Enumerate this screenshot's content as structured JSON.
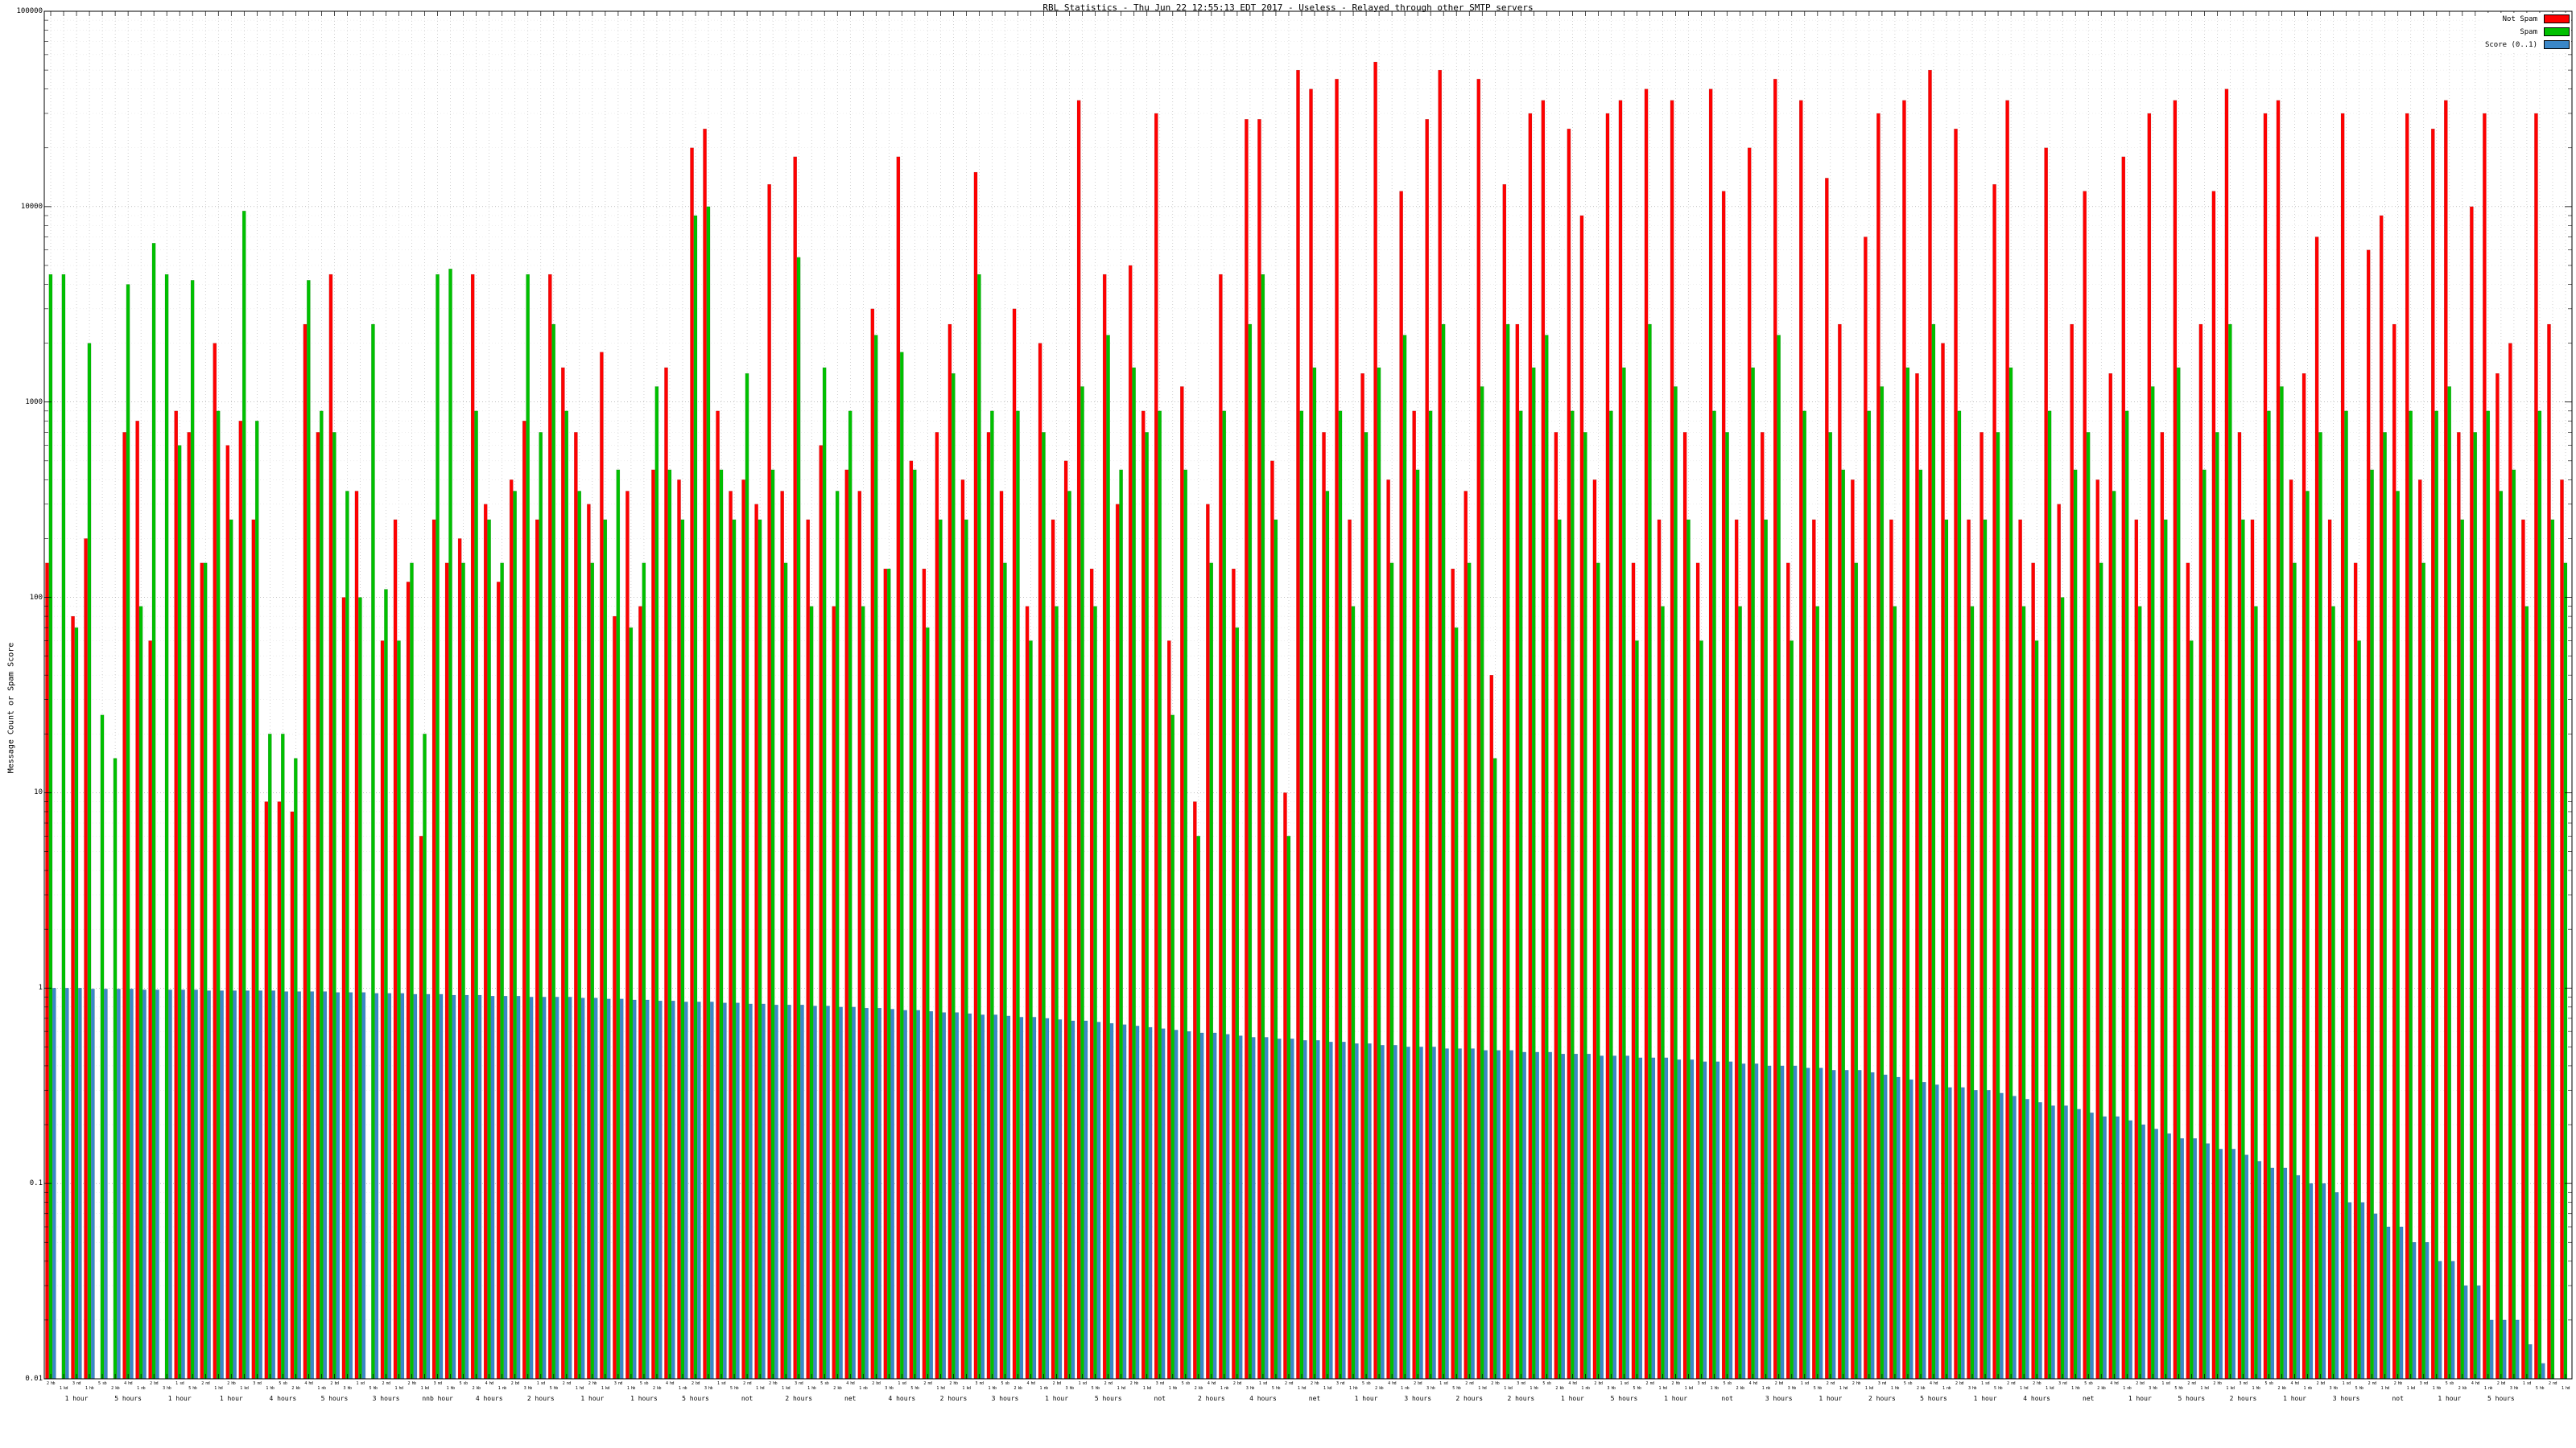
{
  "title": "RBL Statistics - Thu Jun 22 12:55:13 EDT 2017 - Useless - Relayed through other SMTP servers",
  "y_axis": {
    "label": "Message Count or Spam Score",
    "ticks": [
      "100000",
      "10000",
      "1000",
      "100",
      "10",
      "1",
      "0.1",
      "0.01"
    ]
  },
  "legend": {
    "items": [
      {
        "label": "Not Spam",
        "color": "#ff0000"
      },
      {
        "label": "Spam",
        "color": "#00c000"
      },
      {
        "label": "Score (0..1)",
        "color": "#3a87c8"
      }
    ]
  },
  "x_axis": {
    "dense_labels": [
      "2 hb",
      "1 kd",
      "3 nd",
      "1 hb",
      "5 sb",
      "2 kb",
      "4 hd",
      "1 nb",
      "2 bd",
      "3 hb",
      "1 sd",
      "5 hb",
      "2 nd",
      "1 hd",
      "2 hb",
      "1 kd",
      "3 nd",
      "1 hb",
      "5 sb",
      "2 kb",
      "4 hd",
      "1 nb",
      "2 bd",
      "3 hb",
      "1 sd",
      "5 hb",
      "2 nd",
      "1 hd",
      "2 hb",
      "1 kd",
      "3 nd",
      "1 hb",
      "5 sb",
      "2 kb",
      "4 hd",
      "1 nb",
      "2 bd",
      "3 hb",
      "1 sd",
      "5 hb",
      "2 nd",
      "1 hd",
      "2 hb",
      "1 kd",
      "3 nd",
      "1 hb",
      "5 sb",
      "2 kb",
      "4 hd",
      "1 nb",
      "2 bd",
      "3 hb",
      "1 sd",
      "5 hb",
      "2 nd",
      "1 hd",
      "2 hb",
      "1 kd",
      "3 nd",
      "1 hb",
      "5 sb",
      "2 kb",
      "4 hd",
      "1 nb",
      "2 bd",
      "3 hb",
      "1 sd",
      "5 hb",
      "2 nd",
      "1 hd",
      "2 hb",
      "1 kd",
      "3 nd",
      "1 hb",
      "5 sb",
      "2 kb",
      "4 hd",
      "1 nb",
      "2 bd",
      "3 hb",
      "1 sd",
      "5 hb",
      "2 nd",
      "1 hd",
      "2 hb",
      "1 kd",
      "3 nd",
      "1 hb",
      "5 sb",
      "2 kb",
      "4 hd",
      "1 nb",
      "2 bd",
      "3 hb",
      "1 sd",
      "5 hb",
      "2 nd",
      "1 hd",
      "2 hb",
      "1 kd",
      "3 nd",
      "1 hb",
      "5 sb",
      "2 kb",
      "4 hd",
      "1 nb",
      "2 bd",
      "3 hb",
      "1 sd",
      "5 hb",
      "2 nd",
      "1 hd",
      "2 hb",
      "1 kd",
      "3 nd",
      "1 hb",
      "5 sb",
      "2 kb",
      "4 hd",
      "1 nb",
      "2 bd",
      "3 hb",
      "1 sd",
      "5 hb",
      "2 nd",
      "1 hd",
      "2 hb",
      "1 kd",
      "3 nd",
      "1 hb",
      "5 sb",
      "2 kb",
      "4 hd",
      "1 nb",
      "2 bd",
      "3 hb",
      "1 sd",
      "5 hb",
      "2 nd",
      "1 hd",
      "2 hb",
      "1 kd",
      "3 nd",
      "1 hb",
      "5 sb",
      "2 kb",
      "4 hd",
      "1 nb",
      "2 bd",
      "3 hb",
      "1 sd",
      "5 hb",
      "2 nd",
      "1 hd",
      "2 hb",
      "1 kd",
      "3 nd",
      "1 hb",
      "5 sb",
      "2 kb",
      "4 hd",
      "1 nb",
      "2 bd",
      "3 hb",
      "1 sd",
      "5 hb",
      "2 nd",
      "1 hd",
      "2 hb",
      "1 kd",
      "3 nd",
      "1 hb",
      "5 sb",
      "2 kb",
      "4 hd",
      "1 nb",
      "2 bd",
      "3 hb",
      "1 sd",
      "5 hb",
      "2 nd",
      "1 hd",
      "2 hb",
      "1 kd",
      "3 nd",
      "1 hb",
      "5 sb",
      "2 kb",
      "4 hd",
      "1 nb",
      "2 bd",
      "3 hb",
      "1 sd",
      "5 hb",
      "2 nd",
      "1 hd"
    ],
    "durations": [
      "1 hour",
      "5 hours",
      "1 hour",
      "1 hour",
      "4 hours",
      "5 hours",
      "3 hours",
      "nnb hour",
      "4 hours",
      "2 hours",
      "1 hour",
      "1 hours",
      "5 hours",
      "not",
      "2 hours",
      "net",
      "4 hours",
      "2 hours",
      "3 hours",
      "1 hour",
      "5 hours",
      "not",
      "2 hours",
      "4 hours",
      "net",
      "1 hour",
      "3 hours",
      "2 hours",
      "2 hours",
      "1 hour",
      "5 hours",
      "1 hour",
      "not",
      "3 hours",
      "1 hour",
      "2 hours",
      "5 hours",
      "1 hour",
      "4 hours",
      "net",
      "1 hour",
      "5 hours",
      "2 hours",
      "1 hour",
      "3 hours",
      "not",
      "1 hour",
      "5 hours"
    ]
  },
  "chart_data": {
    "type": "bar",
    "scale": "log-y",
    "ylim": [
      0.01,
      100000
    ],
    "title": "RBL Statistics - Thu Jun 22 12:55:13 EDT 2017 - Useless - Relayed through other SMTP servers",
    "ylabel": "Message Count or Spam Score",
    "legend_position": "top-right",
    "grid": true,
    "series": [
      {
        "name": "Not Spam",
        "key": "not-spam",
        "color": "#ff0000",
        "values": [
          150,
          0,
          80,
          200,
          0,
          0,
          700,
          800,
          60,
          0,
          900,
          700,
          150,
          2000,
          600,
          800,
          250,
          9,
          9,
          8,
          2500,
          700,
          4500,
          100,
          350,
          0,
          60,
          250,
          120,
          6,
          250,
          150,
          200,
          4500,
          300,
          120,
          400,
          800,
          250,
          4500,
          1500,
          700,
          300,
          1800,
          80,
          350,
          90,
          450,
          1500,
          400,
          20000,
          25000,
          900,
          350,
          400,
          300,
          13000,
          350,
          18000,
          250,
          600,
          90,
          450,
          350,
          3000,
          140,
          18000,
          500,
          140,
          700,
          2500,
          400,
          15000,
          700,
          350,
          3000,
          90,
          2000,
          250,
          500,
          35000,
          140,
          4500,
          300,
          5000,
          900,
          30000,
          60,
          1200,
          9,
          300,
          4500,
          140,
          28000,
          28000,
          500,
          10,
          50000,
          40000,
          700,
          45000,
          250,
          1400,
          55000,
          400,
          12000,
          900,
          28000,
          50000,
          140,
          350,
          45000,
          40,
          13000,
          2500,
          30000,
          35000,
          700,
          25000,
          9000,
          400,
          30000,
          35000,
          150,
          40000,
          250,
          35000,
          700,
          150,
          40000,
          12000,
          250,
          20000,
          700,
          45000,
          150,
          35000,
          250,
          14000,
          2500,
          400,
          7000,
          30000,
          250,
          35000,
          1400,
          50000,
          2000,
          25000,
          250,
          700,
          13000,
          35000,
          250,
          150,
          20000,
          300,
          2500,
          12000,
          400,
          1400,
          18000,
          250,
          30000,
          700,
          35000,
          150,
          2500,
          12000,
          40000,
          700,
          250,
          30000,
          35000,
          400,
          1400,
          7000,
          250,
          30000,
          150,
          6000,
          9000,
          2500,
          30000,
          400,
          25000,
          35000,
          700,
          10000,
          30000,
          1400,
          2000,
          250,
          30000,
          2500,
          400
        ]
      },
      {
        "name": "Spam",
        "key": "spam",
        "color": "#00c000",
        "values": [
          4500,
          4500,
          70,
          2000,
          25,
          15,
          4000,
          90,
          6500,
          4500,
          600,
          4200,
          150,
          900,
          250,
          9500,
          800,
          20,
          20,
          15,
          4200,
          900,
          700,
          350,
          100,
          2500,
          110,
          60,
          150,
          20,
          4500,
          4800,
          150,
          900,
          250,
          150,
          350,
          4500,
          700,
          2500,
          900,
          350,
          150,
          250,
          450,
          70,
          150,
          1200,
          450,
          250,
          9000,
          10000,
          450,
          250,
          1400,
          250,
          450,
          150,
          5500,
          90,
          1500,
          350,
          900,
          90,
          2200,
          140,
          1800,
          450,
          70,
          250,
          1400,
          250,
          4500,
          900,
          150,
          900,
          60,
          700,
          90,
          350,
          1200,
          90,
          2200,
          450,
          1500,
          700,
          900,
          25,
          450,
          6,
          150,
          900,
          70,
          2500,
          4500,
          250,
          6,
          900,
          1500,
          350,
          900,
          90,
          700,
          1500,
          150,
          2200,
          450,
          900,
          2500,
          70,
          150,
          1200,
          15,
          2500,
          900,
          1500,
          2200,
          250,
          900,
          700,
          150,
          900,
          1500,
          60,
          2500,
          90,
          1200,
          250,
          60,
          900,
          700,
          90,
          1500,
          250,
          2200,
          60,
          900,
          90,
          700,
          450,
          150,
          900,
          1200,
          90,
          1500,
          450,
          2500,
          250,
          900,
          90,
          250,
          700,
          1500,
          90,
          60,
          900,
          100,
          450,
          700,
          150,
          350,
          900,
          90,
          1200,
          250,
          1500,
          60,
          450,
          700,
          2500,
          250,
          90,
          900,
          1200,
          150,
          350,
          700,
          90,
          900,
          60,
          450,
          700,
          350,
          900,
          150,
          900,
          1200,
          250,
          700,
          900,
          350,
          450,
          90,
          900,
          250,
          150
        ]
      },
      {
        "name": "Score (0..1)",
        "key": "score",
        "color": "#3a87c8",
        "values": [
          1.0,
          1.0,
          1.0,
          0.99,
          0.99,
          0.99,
          0.99,
          0.98,
          0.98,
          0.98,
          0.98,
          0.98,
          0.97,
          0.97,
          0.97,
          0.97,
          0.97,
          0.97,
          0.96,
          0.96,
          0.96,
          0.96,
          0.95,
          0.95,
          0.95,
          0.94,
          0.94,
          0.94,
          0.93,
          0.93,
          0.93,
          0.92,
          0.92,
          0.92,
          0.91,
          0.91,
          0.91,
          0.9,
          0.9,
          0.9,
          0.9,
          0.89,
          0.89,
          0.88,
          0.88,
          0.87,
          0.87,
          0.86,
          0.86,
          0.85,
          0.85,
          0.85,
          0.84,
          0.84,
          0.83,
          0.83,
          0.82,
          0.82,
          0.82,
          0.81,
          0.81,
          0.8,
          0.8,
          0.79,
          0.79,
          0.78,
          0.77,
          0.77,
          0.76,
          0.75,
          0.75,
          0.74,
          0.73,
          0.73,
          0.72,
          0.71,
          0.71,
          0.7,
          0.69,
          0.68,
          0.68,
          0.67,
          0.66,
          0.65,
          0.64,
          0.63,
          0.62,
          0.61,
          0.6,
          0.59,
          0.59,
          0.58,
          0.57,
          0.56,
          0.56,
          0.55,
          0.55,
          0.54,
          0.54,
          0.53,
          0.53,
          0.52,
          0.52,
          0.51,
          0.51,
          0.5,
          0.5,
          0.5,
          0.49,
          0.49,
          0.49,
          0.48,
          0.48,
          0.48,
          0.47,
          0.47,
          0.47,
          0.46,
          0.46,
          0.46,
          0.45,
          0.45,
          0.45,
          0.44,
          0.44,
          0.44,
          0.43,
          0.43,
          0.42,
          0.42,
          0.42,
          0.41,
          0.41,
          0.4,
          0.4,
          0.4,
          0.39,
          0.39,
          0.38,
          0.38,
          0.38,
          0.37,
          0.36,
          0.35,
          0.34,
          0.33,
          0.32,
          0.31,
          0.31,
          0.3,
          0.3,
          0.29,
          0.28,
          0.27,
          0.26,
          0.25,
          0.25,
          0.24,
          0.23,
          0.22,
          0.22,
          0.21,
          0.2,
          0.19,
          0.18,
          0.17,
          0.17,
          0.16,
          0.15,
          0.15,
          0.14,
          0.13,
          0.12,
          0.12,
          0.11,
          0.1,
          0.1,
          0.09,
          0.08,
          0.08,
          0.07,
          0.06,
          0.06,
          0.05,
          0.05,
          0.04,
          0.04,
          0.03,
          0.03,
          0.02,
          0.02,
          0.02,
          0.015,
          0.012,
          0.01,
          0.01
        ]
      }
    ]
  }
}
